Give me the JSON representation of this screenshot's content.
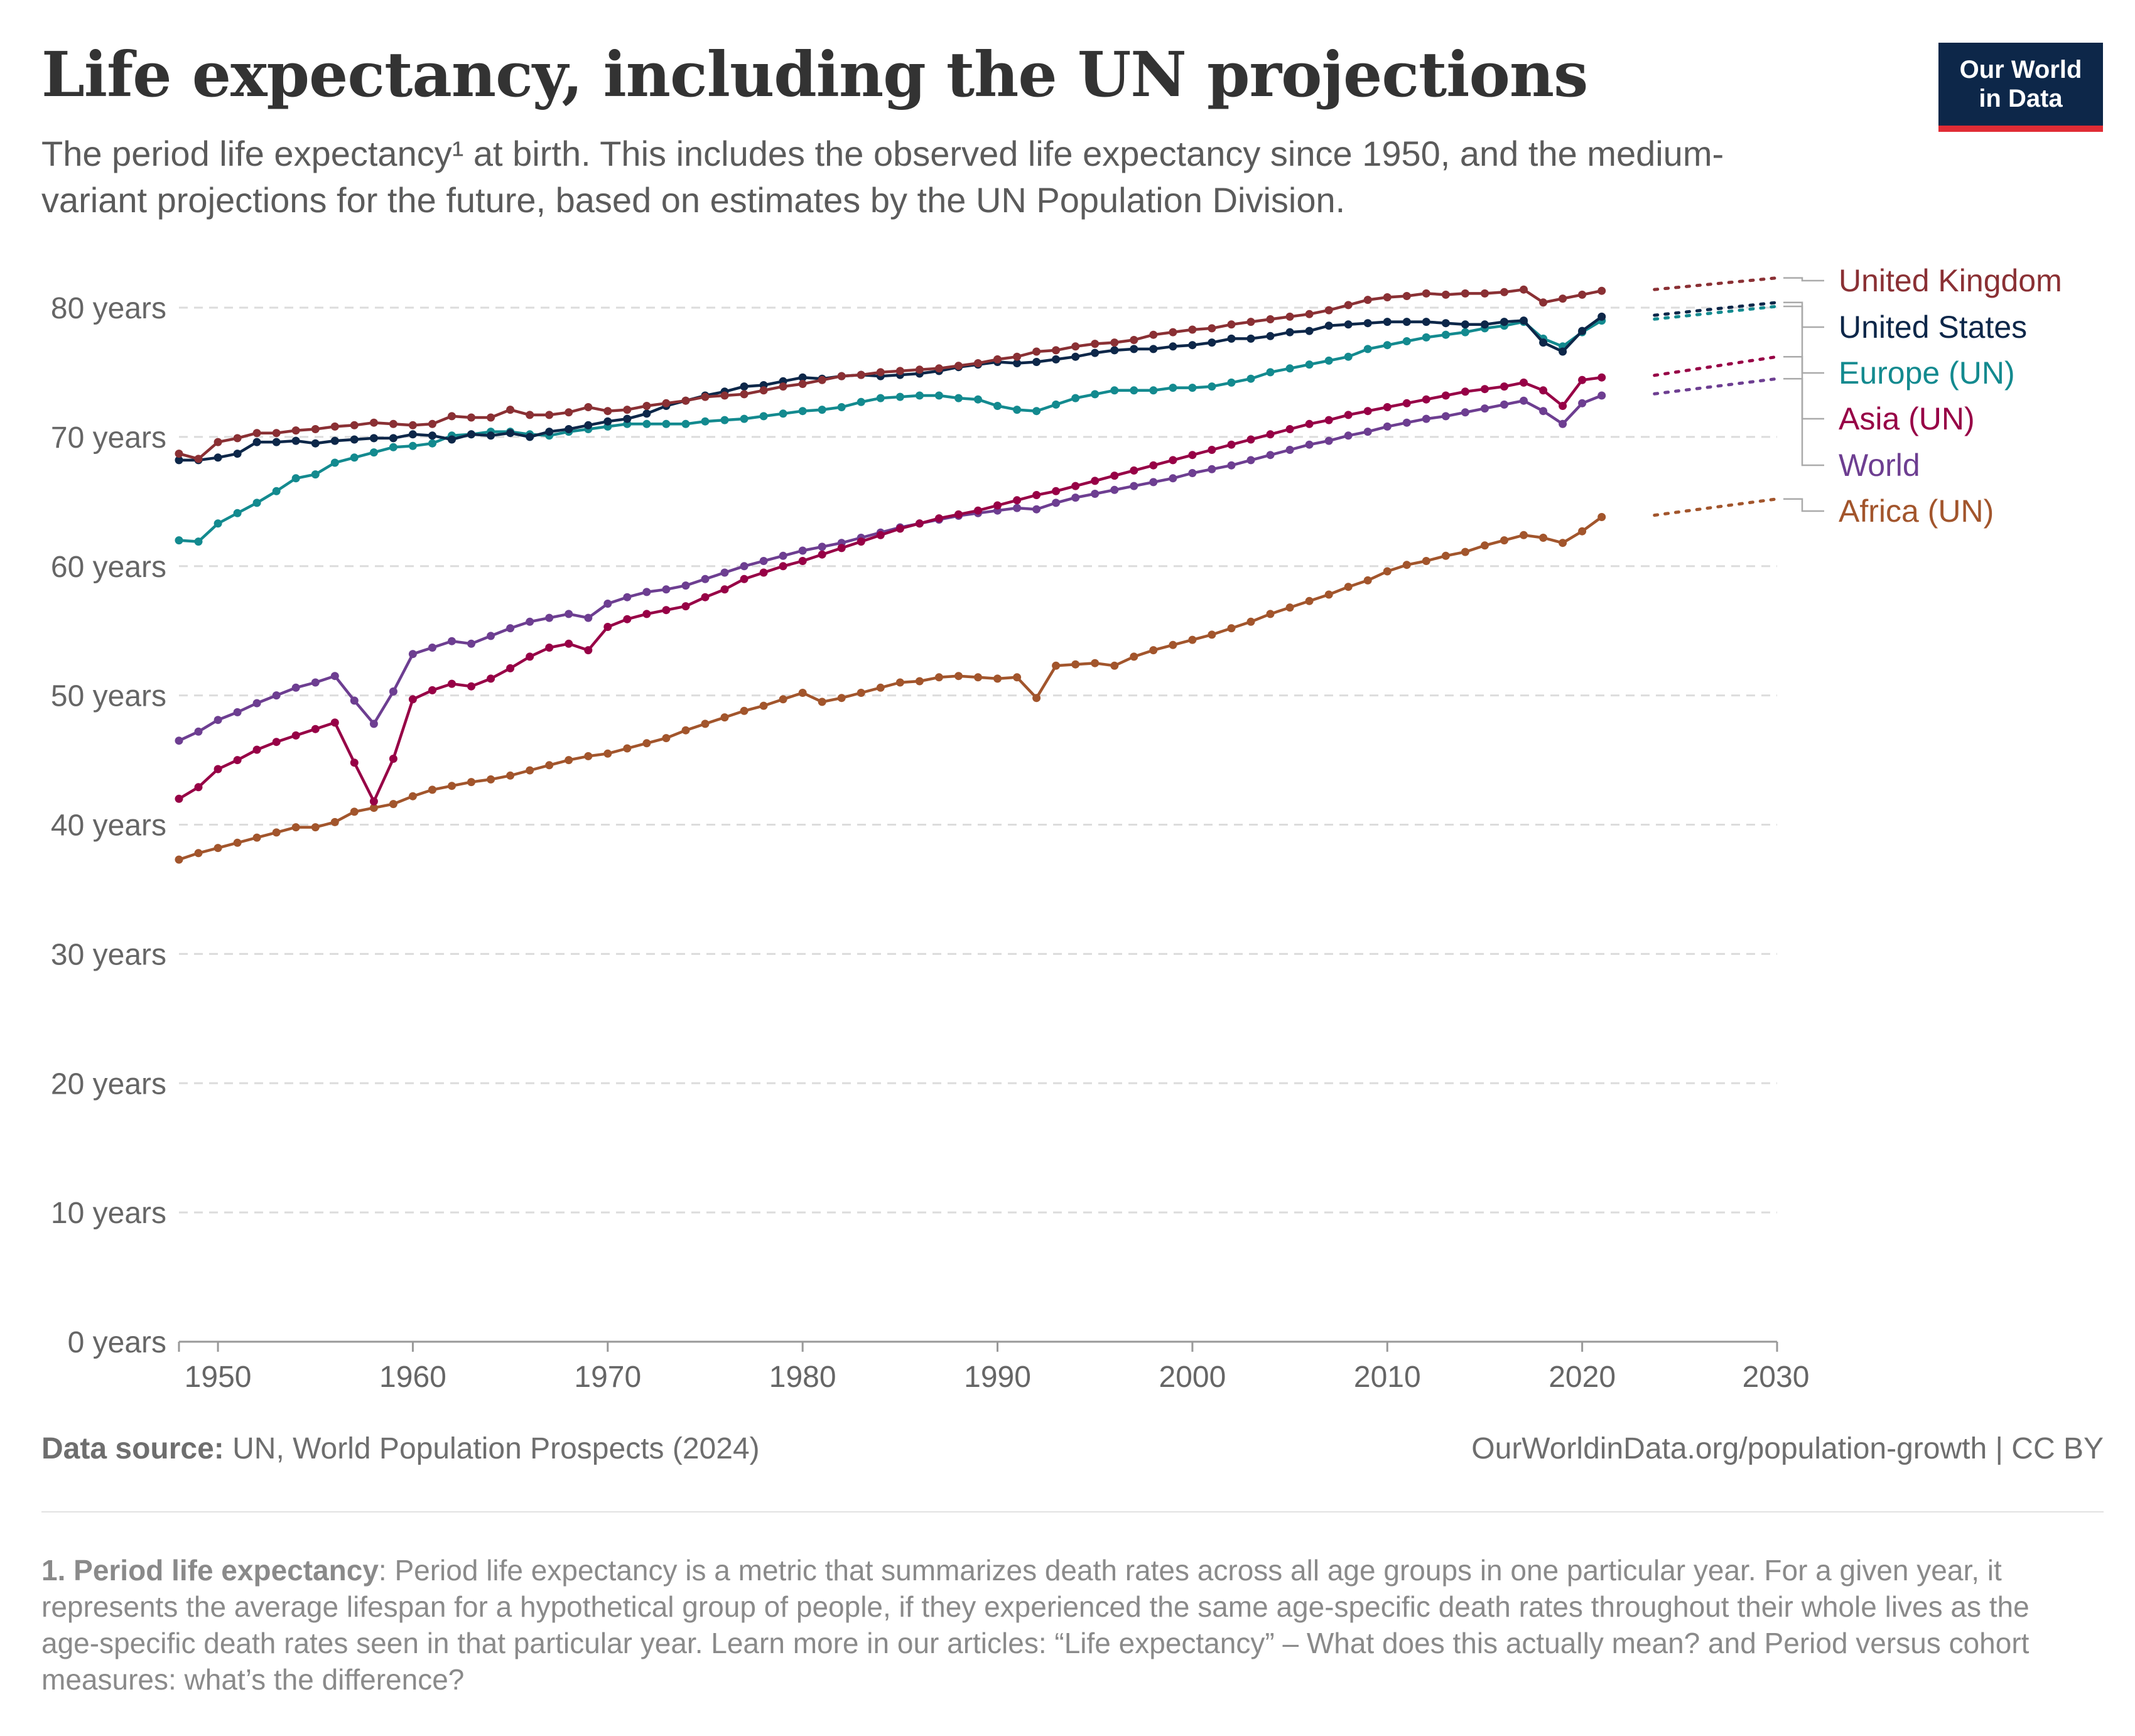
{
  "header": {
    "title": "Life expectancy, including the UN projections",
    "subtitle": "The period life expectancy¹ at birth. This includes the observed life expectancy since 1950, and the medium-variant projections for the future, based on estimates by the UN Population Division.",
    "logo_line1": "Our World",
    "logo_line2": "in Data"
  },
  "footer": {
    "source_label": "Data source:",
    "source_text": "UN, World Population Prospects (2024)",
    "url_text": "OurWorldinData.org/population-growth | CC BY",
    "footnote_label": "1. Period life expectancy",
    "footnote_text": ": Period life expectancy is a metric that summarizes death rates across all age groups in one particular year. For a given year, it represents the average lifespan for a hypothetical group of people, if they experienced the same age-specific death rates throughout their whole lives as the age-specific death rates seen in that particular year. Learn more in our articles: “Life expectancy” – What does this actually mean? and Period versus cohort measures: what’s the difference?"
  },
  "chart_data": {
    "type": "line",
    "title": "Life expectancy, including the UN projections",
    "x_ticks": [
      1950,
      1960,
      1970,
      1980,
      1990,
      2000,
      2010,
      2020,
      2030
    ],
    "x_tick_labels": [
      "1950",
      "1960",
      "1970",
      "1980",
      "1990",
      "2000",
      "2010",
      "2020",
      "2030"
    ],
    "y_ticks": [
      0,
      10,
      20,
      30,
      40,
      50,
      60,
      70,
      80
    ],
    "y_tick_labels": [
      "0 years",
      "10 years",
      "20 years",
      "30 years",
      "40 years",
      "50 years",
      "60 years",
      "70 years",
      "80 years"
    ],
    "xlim": [
      1948,
      2030
    ],
    "ylim": [
      0,
      80
    ],
    "grid": "horizontal dashed",
    "legend": "right",
    "observed_start": 1948,
    "observed_end": 2023,
    "projection_end": 2030,
    "series": [
      {
        "name": "United Kingdom",
        "color": "#8a3034",
        "values": [
          68.7,
          68.3,
          69.6,
          69.9,
          70.3,
          70.3,
          70.5,
          70.6,
          70.8,
          70.9,
          71.1,
          71.0,
          70.9,
          71.0,
          71.6,
          71.5,
          71.5,
          72.1,
          71.7,
          71.7,
          71.9,
          72.3,
          72.0,
          72.1,
          72.4,
          72.6,
          72.8,
          73.1,
          73.2,
          73.3,
          73.6,
          73.9,
          74.1,
          74.4,
          74.7,
          74.8,
          75.0,
          75.1,
          75.2,
          75.3,
          75.5,
          75.7,
          76.0,
          76.2,
          76.6,
          76.7,
          77.0,
          77.2,
          77.3,
          77.5,
          77.9,
          78.1,
          78.3,
          78.4,
          78.7,
          78.9,
          79.1,
          79.3,
          79.5,
          79.8,
          80.2,
          80.6,
          80.8,
          80.9,
          81.1,
          81.0,
          81.1,
          81.1,
          81.2,
          81.4,
          80.4,
          80.7,
          81.0,
          81.3
        ],
        "projection": [
          81.3,
          82.3
        ],
        "years_start": 1950
      },
      {
        "name": "United States",
        "color": "#0d2749",
        "values": [
          68.2,
          68.2,
          68.4,
          68.7,
          69.6,
          69.6,
          69.7,
          69.5,
          69.7,
          69.8,
          69.9,
          69.9,
          70.2,
          70.1,
          69.8,
          70.2,
          70.1,
          70.3,
          70.0,
          70.4,
          70.6,
          70.9,
          71.2,
          71.4,
          71.8,
          72.4,
          72.8,
          73.2,
          73.5,
          73.9,
          74.0,
          74.3,
          74.6,
          74.5,
          74.7,
          74.8,
          74.7,
          74.8,
          74.9,
          75.1,
          75.4,
          75.6,
          75.8,
          75.7,
          75.8,
          76.0,
          76.2,
          76.5,
          76.7,
          76.8,
          76.8,
          77.0,
          77.1,
          77.3,
          77.6,
          77.6,
          77.8,
          78.1,
          78.2,
          78.6,
          78.7,
          78.8,
          78.9,
          78.9,
          78.9,
          78.8,
          78.7,
          78.7,
          78.9,
          79.0,
          77.3,
          76.6,
          78.2,
          79.3
        ],
        "projection": [
          79.3,
          80.4
        ],
        "years_start": 1950
      },
      {
        "name": "Europe (UN)",
        "color": "#138a8f",
        "values": [
          62.0,
          61.9,
          63.3,
          64.1,
          64.9,
          65.8,
          66.8,
          67.1,
          68.0,
          68.4,
          68.8,
          69.2,
          69.3,
          69.5,
          70.1,
          70.2,
          70.4,
          70.4,
          70.2,
          70.1,
          70.4,
          70.6,
          70.8,
          71.0,
          71.0,
          71.0,
          71.0,
          71.2,
          71.3,
          71.4,
          71.6,
          71.8,
          72.0,
          72.1,
          72.3,
          72.7,
          73.0,
          73.1,
          73.2,
          73.2,
          73.0,
          72.9,
          72.4,
          72.1,
          72.0,
          72.5,
          73.0,
          73.3,
          73.6,
          73.6,
          73.6,
          73.8,
          73.8,
          73.9,
          74.2,
          74.5,
          75.0,
          75.3,
          75.6,
          75.9,
          76.2,
          76.8,
          77.1,
          77.4,
          77.7,
          77.9,
          78.1,
          78.4,
          78.6,
          78.9,
          77.6,
          77.0,
          78.1,
          79.0
        ],
        "projection": [
          79.0,
          80.1
        ],
        "years_start": 1950
      },
      {
        "name": "Asia (UN)",
        "color": "#970046",
        "values": [
          42.0,
          42.9,
          44.3,
          45.0,
          45.8,
          46.4,
          46.9,
          47.4,
          47.9,
          44.8,
          41.8,
          45.1,
          49.7,
          50.4,
          50.9,
          50.7,
          51.3,
          52.1,
          53.0,
          53.7,
          54.0,
          53.5,
          55.3,
          55.9,
          56.3,
          56.6,
          56.9,
          57.6,
          58.2,
          59.0,
          59.5,
          60.0,
          60.4,
          60.9,
          61.4,
          61.9,
          62.4,
          62.9,
          63.3,
          63.7,
          64.0,
          64.3,
          64.7,
          65.1,
          65.5,
          65.8,
          66.2,
          66.6,
          67.0,
          67.4,
          67.8,
          68.2,
          68.6,
          69.0,
          69.4,
          69.8,
          70.2,
          70.6,
          71.0,
          71.3,
          71.7,
          72.0,
          72.3,
          72.6,
          72.9,
          73.2,
          73.5,
          73.7,
          73.9,
          74.2,
          73.6,
          72.4,
          74.4,
          74.6
        ],
        "projection": [
          74.6,
          76.2
        ],
        "years_start": 1950
      },
      {
        "name": "World",
        "color": "#6d3e91",
        "values": [
          46.5,
          47.2,
          48.1,
          48.7,
          49.4,
          50.0,
          50.6,
          51.0,
          51.5,
          49.6,
          47.8,
          50.3,
          53.2,
          53.7,
          54.2,
          54.0,
          54.6,
          55.2,
          55.7,
          56.0,
          56.3,
          56.0,
          57.1,
          57.6,
          58.0,
          58.2,
          58.5,
          59.0,
          59.5,
          60.0,
          60.4,
          60.8,
          61.2,
          61.5,
          61.8,
          62.2,
          62.6,
          63.0,
          63.3,
          63.6,
          63.9,
          64.1,
          64.3,
          64.5,
          64.4,
          64.9,
          65.3,
          65.6,
          65.9,
          66.2,
          66.5,
          66.8,
          67.2,
          67.5,
          67.8,
          68.2,
          68.6,
          69.0,
          69.4,
          69.7,
          70.1,
          70.4,
          70.8,
          71.1,
          71.4,
          71.6,
          71.9,
          72.2,
          72.5,
          72.8,
          72.0,
          71.0,
          72.6,
          73.2
        ],
        "projection": [
          73.2,
          74.5
        ],
        "years_start": 1950
      },
      {
        "name": "Africa (UN)",
        "color": "#a2552c",
        "values": [
          37.3,
          37.8,
          38.2,
          38.6,
          39.0,
          39.4,
          39.8,
          39.8,
          40.2,
          41.0,
          41.3,
          41.6,
          42.2,
          42.7,
          43.0,
          43.3,
          43.5,
          43.8,
          44.2,
          44.6,
          45.0,
          45.3,
          45.5,
          45.9,
          46.3,
          46.7,
          47.3,
          47.8,
          48.3,
          48.8,
          49.2,
          49.7,
          50.2,
          49.5,
          49.8,
          50.2,
          50.6,
          51.0,
          51.1,
          51.4,
          51.5,
          51.4,
          51.3,
          51.4,
          49.8,
          52.3,
          52.4,
          52.5,
          52.3,
          53.0,
          53.5,
          53.9,
          54.3,
          54.7,
          55.2,
          55.7,
          56.3,
          56.8,
          57.3,
          57.8,
          58.4,
          58.9,
          59.6,
          60.1,
          60.4,
          60.8,
          61.1,
          61.6,
          62.0,
          62.4,
          62.2,
          61.8,
          62.7,
          63.8
        ],
        "projection": [
          63.8,
          65.2
        ],
        "years_start": 1950
      }
    ]
  }
}
